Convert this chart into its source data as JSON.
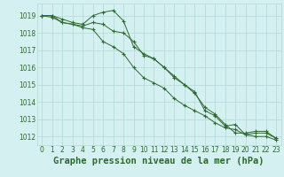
{
  "xlabel": "Graphe pression niveau de la mer (hPa)",
  "hours": [
    0,
    1,
    2,
    3,
    4,
    5,
    6,
    7,
    8,
    9,
    10,
    11,
    12,
    13,
    14,
    15,
    16,
    17,
    18,
    19,
    20,
    21,
    22,
    23
  ],
  "series": [
    [
      1019.0,
      1019.0,
      1018.8,
      1018.6,
      1018.5,
      1019.0,
      1019.2,
      1019.3,
      1018.7,
      1017.2,
      1016.8,
      1016.5,
      1016.0,
      1015.5,
      1015.0,
      1014.5,
      1013.7,
      1013.3,
      1012.7,
      1012.2,
      1012.2,
      1012.3,
      1012.3,
      1011.9
    ],
    [
      1019.0,
      1019.0,
      1018.6,
      1018.5,
      1018.4,
      1018.6,
      1018.5,
      1018.1,
      1018.0,
      1017.5,
      1016.7,
      1016.5,
      1016.0,
      1015.4,
      1015.0,
      1014.6,
      1013.5,
      1013.2,
      1012.6,
      1012.7,
      1012.1,
      1012.2,
      1012.2,
      1011.9
    ],
    [
      1019.0,
      1018.9,
      1018.6,
      1018.5,
      1018.3,
      1018.2,
      1017.5,
      1017.2,
      1016.8,
      1016.0,
      1015.4,
      1015.1,
      1014.8,
      1014.2,
      1013.8,
      1013.5,
      1013.2,
      1012.8,
      1012.5,
      1012.4,
      1012.1,
      1012.0,
      1012.0,
      1011.8
    ]
  ],
  "line_color": "#2d6a2d",
  "marker": "+",
  "marker_size": 3,
  "bg_color": "#d5f0f0",
  "grid_color": "#b0d8d8",
  "ylim": [
    1011.5,
    1019.7
  ],
  "yticks": [
    1012,
    1013,
    1014,
    1015,
    1016,
    1017,
    1018,
    1019
  ],
  "xlim": [
    -0.5,
    23.5
  ],
  "xticks": [
    0,
    1,
    2,
    3,
    4,
    5,
    6,
    7,
    8,
    9,
    10,
    11,
    12,
    13,
    14,
    15,
    16,
    17,
    18,
    19,
    20,
    21,
    22,
    23
  ],
  "tick_fontsize": 5.5,
  "label_fontsize": 7.5,
  "label_bold": true,
  "linewidth": 0.7
}
